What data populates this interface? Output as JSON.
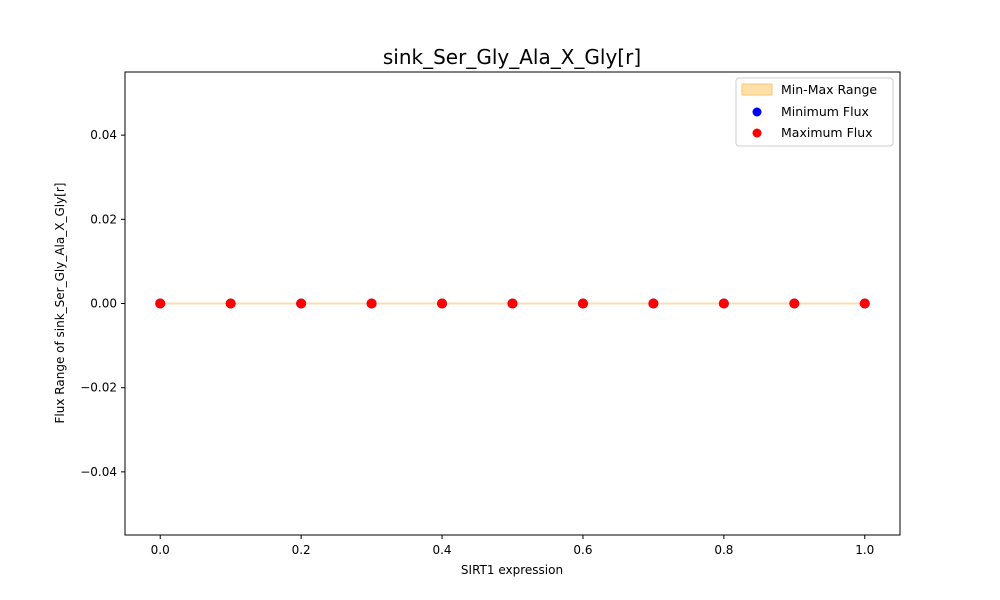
{
  "chart_data": {
    "type": "scatter",
    "title": "sink_Ser_Gly_Ala_X_Gly[r]",
    "xlabel": "SIRT1 expression",
    "ylabel": "Flux Range of sink_Ser_Gly_Ala_X_Gly[r]",
    "xlim": [
      -0.05,
      1.05
    ],
    "ylim": [
      -0.055,
      0.055
    ],
    "xticks": [
      "0.0",
      "0.2",
      "0.4",
      "0.6",
      "0.8",
      "1.0"
    ],
    "yticks": [
      "0.04",
      "0.02",
      "0.00",
      "−0.02",
      "−0.04"
    ],
    "x": [
      0.0,
      0.1,
      0.2,
      0.3,
      0.4,
      0.5,
      0.6,
      0.7,
      0.8,
      0.9,
      1.0
    ],
    "series": [
      {
        "name": "Min-Max Range",
        "kind": "band",
        "color": "#ffe0a6",
        "edge": "#f5c77a",
        "lower": [
          0,
          0,
          0,
          0,
          0,
          0,
          0,
          0,
          0,
          0,
          0
        ],
        "upper": [
          0,
          0,
          0,
          0,
          0,
          0,
          0,
          0,
          0,
          0,
          0
        ]
      },
      {
        "name": "Minimum Flux",
        "kind": "points",
        "color": "#0000ff",
        "values": [
          0,
          0,
          0,
          0,
          0,
          0,
          0,
          0,
          0,
          0,
          0
        ]
      },
      {
        "name": "Maximum Flux",
        "kind": "points",
        "color": "#ff0000",
        "values": [
          0,
          0,
          0,
          0,
          0,
          0,
          0,
          0,
          0,
          0,
          0
        ]
      }
    ],
    "grid": false,
    "legend_position": "top-right"
  }
}
